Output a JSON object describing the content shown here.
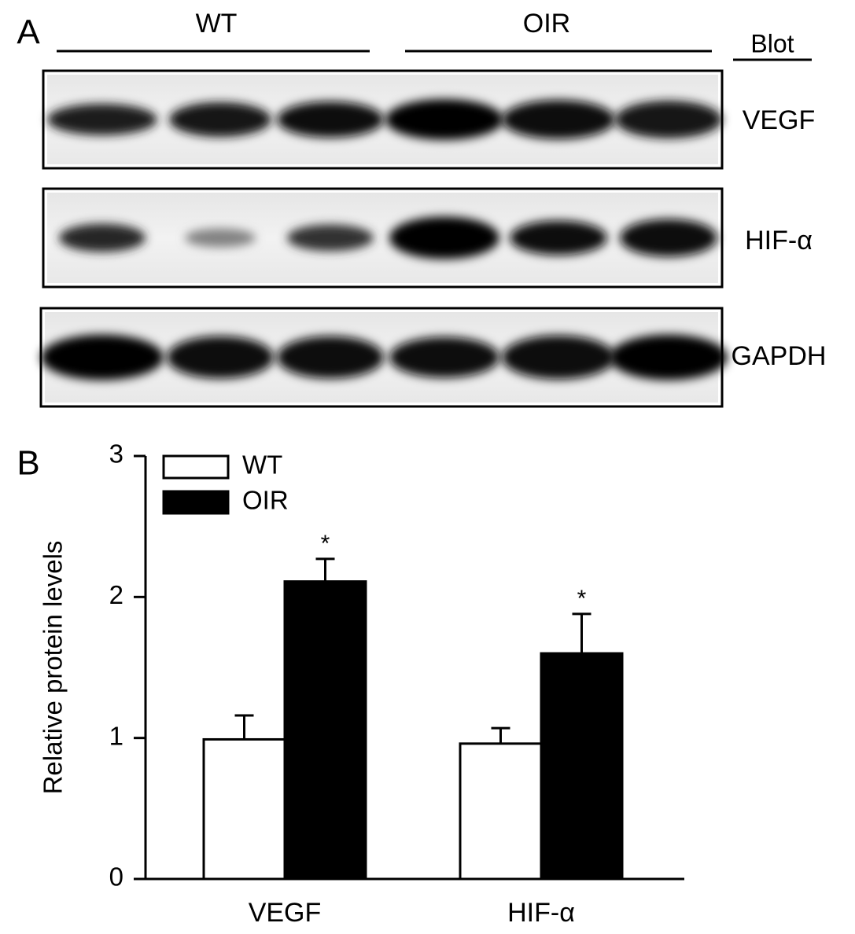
{
  "panel_a": {
    "label": "A",
    "groups": [
      "WT",
      "OIR"
    ],
    "blot_header": "Blot",
    "blots": [
      "VEGF",
      "HIF-α",
      "GAPDH"
    ]
  },
  "chart_data": {
    "type": "bar",
    "panel_label": "B",
    "ylabel": "Relative protein levels",
    "categories": [
      "VEGF",
      "HIF-α"
    ],
    "series": [
      {
        "name": "WT",
        "color": "#ffffff",
        "values": [
          0.99,
          0.96
        ],
        "errors": [
          0.17,
          0.11
        ]
      },
      {
        "name": "OIR",
        "color": "#000000",
        "values": [
          2.11,
          1.6
        ],
        "errors": [
          0.16,
          0.28
        ],
        "annotations": [
          "*",
          "*"
        ]
      }
    ],
    "ylim": [
      0,
      3
    ],
    "yticks": [
      0,
      1,
      2,
      3
    ],
    "grid": false,
    "legend": "top-left"
  }
}
